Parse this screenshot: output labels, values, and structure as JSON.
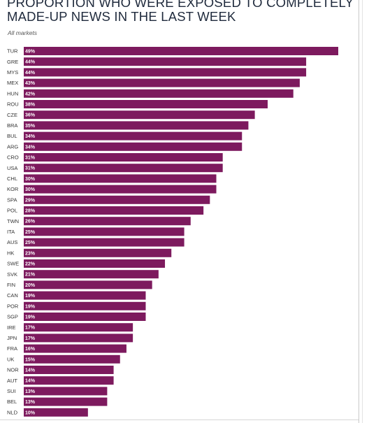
{
  "title": "PROPORTION WHO WERE EXPOSED TO COMPLETELY MADE-UP NEWS IN THE LAST WEEK",
  "subtitle": "All markets",
  "colors": {
    "bar": "#7d1a5e",
    "value_text": "#ffffff"
  },
  "chart_data": {
    "type": "bar",
    "orientation": "horizontal",
    "title": "PROPORTION WHO WERE EXPOSED TO COMPLETELY MADE-UP NEWS IN THE LAST WEEK",
    "subtitle": "All markets",
    "categories": [
      "TUR",
      "GRE",
      "MYS",
      "MEX",
      "HUN",
      "ROU",
      "CZE",
      "BRA",
      "BUL",
      "ARG",
      "CRO",
      "USA",
      "CHL",
      "KOR",
      "SPA",
      "POL",
      "TWN",
      "ITA",
      "AUS",
      "HK",
      "SWE",
      "SVK",
      "FIN",
      "CAN",
      "POR",
      "SGP",
      "IRE",
      "JPN",
      "FRA",
      "UK",
      "NOR",
      "AUT",
      "SUI",
      "BEL",
      "NLD"
    ],
    "values": [
      49,
      44,
      44,
      43,
      42,
      38,
      36,
      35,
      34,
      34,
      31,
      31,
      30,
      30,
      29,
      28,
      26,
      25,
      25,
      23,
      22,
      21,
      20,
      19,
      19,
      19,
      17,
      17,
      16,
      15,
      14,
      14,
      13,
      13,
      10
    ],
    "value_labels": [
      "49%",
      "44%",
      "44%",
      "43%",
      "42%",
      "38%",
      "36%",
      "35%",
      "34%",
      "34%",
      "31%",
      "31%",
      "30%",
      "30%",
      "29%",
      "28%",
      "26%",
      "25%",
      "25%",
      "23%",
      "22%",
      "21%",
      "20%",
      "19%",
      "19%",
      "19%",
      "17%",
      "17%",
      "16%",
      "15%",
      "14%",
      "14%",
      "13%",
      "13%",
      "10%"
    ],
    "unit": "%",
    "xlim": [
      0,
      49
    ],
    "grid": false,
    "legend": "none"
  }
}
